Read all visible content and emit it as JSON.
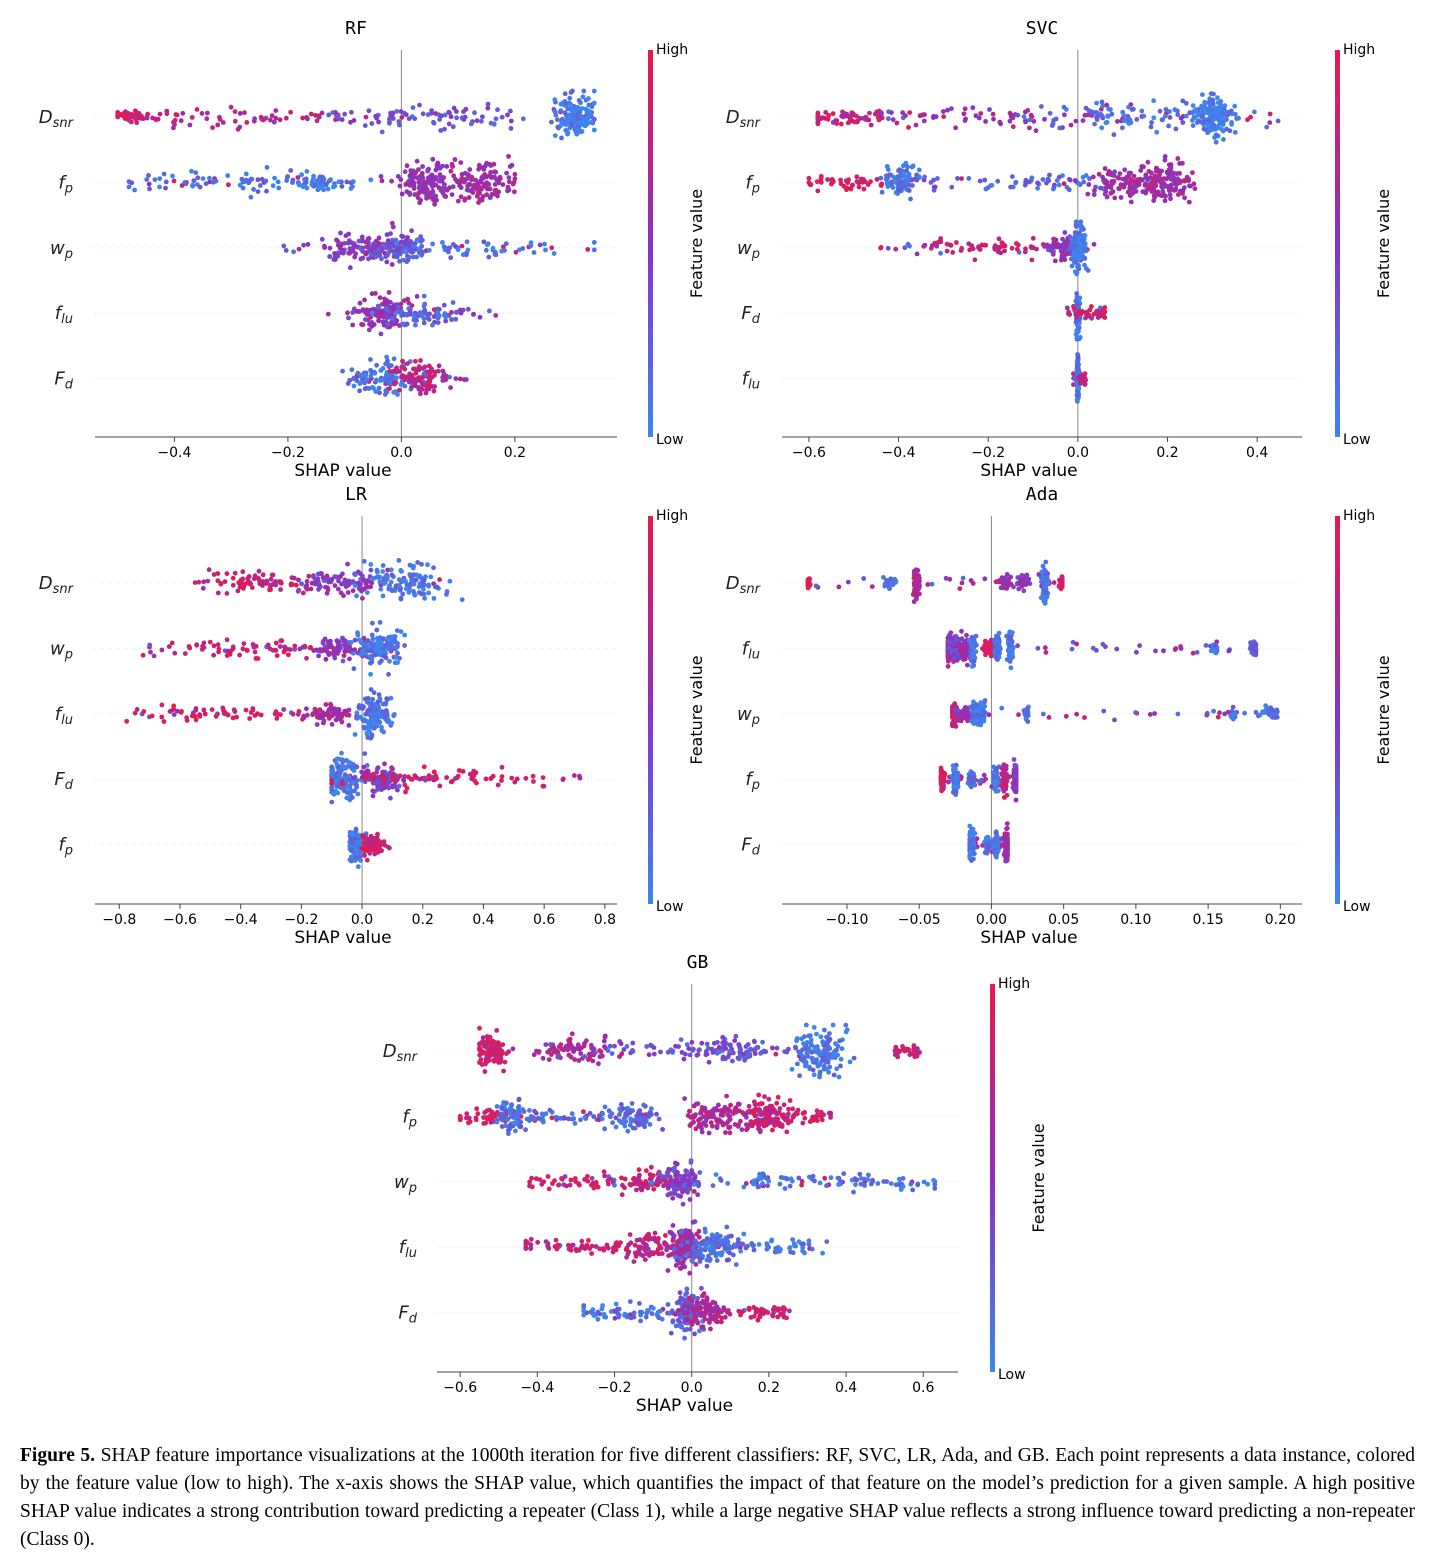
{
  "colors": {
    "low": "#3b87ee",
    "high": "#e8194c",
    "mid": "#8a32c0",
    "axis": "#444444",
    "grid": "#d8d8d8"
  },
  "chart_data": [
    {
      "type": "beeswarm",
      "title": "RF",
      "xlabel": "SHAP value",
      "xlim": [
        -0.54,
        0.38
      ],
      "xticks": [
        "-0.4",
        "-0.2",
        "0.0",
        "0.2"
      ],
      "xtick_values": [
        -0.4,
        -0.2,
        0.0,
        0.2
      ],
      "colorbar": {
        "label": "Feature value",
        "high": "High",
        "low": "Low"
      },
      "features": [
        {
          "name": "D",
          "sub": "snr",
          "min": -0.5,
          "max": 0.34,
          "clusters": [
            [
              -0.48,
              0.02,
              0.9,
              0.15
            ],
            [
              -0.3,
              0.12,
              0.7,
              0.35
            ],
            [
              0.05,
              0.12,
              0.3,
              0.55
            ],
            [
              0.31,
              0.02,
              0.05,
              1.0
            ]
          ]
        },
        {
          "name": "f",
          "sub": "p",
          "min": -0.48,
          "max": 0.2,
          "clusters": [
            [
              -0.3,
              0.1,
              0.15,
              0.35
            ],
            [
              -0.15,
              0.03,
              0.1,
              0.3
            ],
            [
              0.04,
              0.02,
              0.55,
              0.85
            ],
            [
              0.14,
              0.03,
              0.6,
              0.9
            ]
          ]
        },
        {
          "name": "w",
          "sub": "p",
          "min": -0.21,
          "max": 0.34,
          "clusters": [
            [
              -0.06,
              0.04,
              0.5,
              0.7
            ],
            [
              0.0,
              0.02,
              0.3,
              0.5
            ],
            [
              0.1,
              0.09,
              0.1,
              0.3
            ]
          ]
        },
        {
          "name": "f",
          "sub": "lu",
          "min": -0.13,
          "max": 0.19,
          "clusters": [
            [
              -0.03,
              0.025,
              0.55,
              0.75
            ],
            [
              0.04,
              0.04,
              0.2,
              0.45
            ]
          ]
        },
        {
          "name": "F",
          "sub": "d",
          "min": -0.11,
          "max": 0.12,
          "clusters": [
            [
              -0.03,
              0.03,
              0.1,
              0.7
            ],
            [
              0.03,
              0.025,
              0.75,
              0.6
            ]
          ]
        }
      ]
    },
    {
      "type": "beeswarm",
      "title": "SVC",
      "xlabel": "SHAP value",
      "xlim": [
        -0.66,
        0.5
      ],
      "xticks": [
        "-0.6",
        "-0.4",
        "-0.2",
        "0.0",
        "0.2",
        "0.4"
      ],
      "xtick_values": [
        -0.6,
        -0.4,
        -0.2,
        0.0,
        0.2,
        0.4
      ],
      "colorbar": {
        "label": "Feature value",
        "high": "High",
        "low": "Low"
      },
      "features": [
        {
          "name": "D",
          "sub": "snr",
          "min": -0.58,
          "max": 0.46,
          "clusters": [
            [
              -0.52,
              0.06,
              0.85,
              0.35
            ],
            [
              -0.2,
              0.15,
              0.6,
              0.4
            ],
            [
              0.15,
              0.12,
              0.15,
              0.6
            ],
            [
              0.3,
              0.02,
              0.05,
              1.0
            ]
          ]
        },
        {
          "name": "f",
          "sub": "p",
          "min": -0.6,
          "max": 0.28,
          "clusters": [
            [
              -0.52,
              0.05,
              0.95,
              0.2
            ],
            [
              -0.39,
              0.02,
              0.1,
              0.6
            ],
            [
              -0.1,
              0.12,
              0.2,
              0.3
            ],
            [
              0.1,
              0.05,
              0.6,
              0.6
            ],
            [
              0.2,
              0.03,
              0.6,
              0.9
            ]
          ]
        },
        {
          "name": "w",
          "sub": "p",
          "min": -0.44,
          "max": 0.05,
          "clusters": [
            [
              -0.2,
              0.1,
              0.85,
              0.3
            ],
            [
              -0.03,
              0.02,
              0.55,
              0.45
            ],
            [
              0.0,
              0.008,
              0.08,
              1.0
            ]
          ]
        },
        {
          "name": "F",
          "sub": "d",
          "min": -0.03,
          "max": 0.06,
          "clusters": [
            [
              0.0,
              0.002,
              0.1,
              0.9
            ],
            [
              0.03,
              0.02,
              0.9,
              0.1
            ]
          ]
        },
        {
          "name": "f",
          "sub": "lu",
          "min": -0.01,
          "max": 0.02,
          "clusters": [
            [
              0.0,
              0.001,
              0.1,
              0.95
            ],
            [
              0.01,
              0.004,
              0.8,
              0.1
            ]
          ]
        }
      ]
    },
    {
      "type": "beeswarm",
      "title": "LR",
      "xlabel": "SHAP value",
      "xlim": [
        -0.88,
        0.84
      ],
      "xticks": [
        "-0.8",
        "-0.6",
        "-0.4",
        "-0.2",
        "0.0",
        "0.2",
        "0.4",
        "0.6",
        "0.8"
      ],
      "xtick_values": [
        -0.8,
        -0.6,
        -0.4,
        -0.2,
        0.0,
        0.2,
        0.4,
        0.6,
        0.8
      ],
      "colorbar": {
        "label": "Feature value",
        "high": "High",
        "low": "Low"
      },
      "features": [
        {
          "name": "D",
          "sub": "snr",
          "min": -0.55,
          "max": 0.33,
          "clusters": [
            [
              -0.35,
              0.1,
              0.85,
              0.45
            ],
            [
              -0.05,
              0.08,
              0.5,
              0.55
            ],
            [
              0.15,
              0.08,
              0.1,
              0.8
            ]
          ]
        },
        {
          "name": "w",
          "sub": "p",
          "min": -0.73,
          "max": 0.14,
          "clusters": [
            [
              -0.4,
              0.15,
              0.85,
              0.3
            ],
            [
              -0.08,
              0.04,
              0.55,
              0.4
            ],
            [
              0.06,
              0.04,
              0.1,
              0.85
            ]
          ]
        },
        {
          "name": "f",
          "sub": "lu",
          "min": -0.8,
          "max": 0.11,
          "clusters": [
            [
              -0.45,
              0.15,
              0.9,
              0.3
            ],
            [
              -0.1,
              0.04,
              0.6,
              0.4
            ],
            [
              0.04,
              0.03,
              0.1,
              0.95
            ]
          ]
        },
        {
          "name": "F",
          "sub": "d",
          "min": -0.1,
          "max": 0.75,
          "clusters": [
            [
              -0.06,
              0.03,
              0.1,
              1.0
            ],
            [
              0.05,
              0.04,
              0.5,
              0.55
            ],
            [
              0.3,
              0.2,
              0.9,
              0.35
            ]
          ]
        },
        {
          "name": "f",
          "sub": "p",
          "min": -0.04,
          "max": 0.09,
          "clusters": [
            [
              -0.02,
              0.015,
              0.08,
              0.7
            ],
            [
              0.04,
              0.02,
              0.85,
              0.4
            ]
          ]
        }
      ]
    },
    {
      "type": "beeswarm",
      "title": "Ada",
      "xlabel": "SHAP value",
      "xlim": [
        -0.145,
        0.215
      ],
      "xticks": [
        "-0.10",
        "-0.05",
        "0.00",
        "0.05",
        "0.10",
        "0.15",
        "0.20"
      ],
      "xtick_values": [
        -0.1,
        -0.05,
        0.0,
        0.05,
        0.1,
        0.15,
        0.2
      ],
      "colorbar": {
        "label": "Feature value",
        "high": "High",
        "low": "Low"
      },
      "features": [
        {
          "name": "D",
          "sub": "snr",
          "min": -0.127,
          "max": 0.049,
          "clusters": [
            [
              -0.127,
              0.001,
              0.95,
              0.08
            ],
            [
              -0.07,
              0.002,
              0.1,
              0.12
            ],
            [
              -0.052,
              0.001,
              0.7,
              0.5
            ],
            [
              0.01,
              0.002,
              0.6,
              0.15
            ],
            [
              0.022,
              0.002,
              0.5,
              0.2
            ],
            [
              0.037,
              0.001,
              0.1,
              0.7
            ],
            [
              0.049,
              0.001,
              0.95,
              0.08
            ]
          ]
        },
        {
          "name": "f",
          "sub": "lu",
          "min": -0.03,
          "max": 0.183,
          "clusters": [
            [
              -0.03,
              0.002,
              0.7,
              0.6
            ],
            [
              -0.025,
              0.002,
              0.4,
              0.5
            ],
            [
              -0.017,
              0.002,
              0.6,
              0.45
            ],
            [
              -0.013,
              0.001,
              0.1,
              0.5
            ],
            [
              -0.002,
              0.002,
              0.9,
              0.2
            ],
            [
              0.004,
              0.001,
              0.1,
              0.5
            ],
            [
              0.013,
              0.001,
              0.1,
              0.55
            ],
            [
              0.155,
              0.001,
              0.1,
              0.05
            ],
            [
              0.182,
              0.001,
              0.2,
              0.25
            ]
          ]
        },
        {
          "name": "w",
          "sub": "p",
          "min": -0.027,
          "max": 0.198,
          "clusters": [
            [
              -0.026,
              0.001,
              0.8,
              0.4
            ],
            [
              -0.02,
              0.003,
              0.5,
              0.2
            ],
            [
              -0.012,
              0.001,
              0.1,
              0.35
            ],
            [
              -0.007,
              0.002,
              0.1,
              0.45
            ],
            [
              0.024,
              0.001,
              0.1,
              0.15
            ],
            [
              0.167,
              0.001,
              0.1,
              0.05
            ],
            [
              0.193,
              0.003,
              0.1,
              0.15
            ]
          ]
        },
        {
          "name": "f",
          "sub": "p",
          "min": -0.035,
          "max": 0.017,
          "clusters": [
            [
              -0.034,
              0.001,
              0.95,
              0.35
            ],
            [
              -0.025,
              0.001,
              0.1,
              0.45
            ],
            [
              -0.014,
              0.001,
              0.1,
              0.15
            ],
            [
              0.003,
              0.001,
              0.1,
              0.4
            ],
            [
              0.009,
              0.001,
              0.75,
              0.5
            ],
            [
              0.017,
              0.001,
              0.45,
              0.65
            ]
          ]
        },
        {
          "name": "F",
          "sub": "d",
          "min": -0.015,
          "max": 0.011,
          "clusters": [
            [
              -0.014,
              0.001,
              0.1,
              0.55
            ],
            [
              -0.003,
              0.001,
              0.1,
              0.25
            ],
            [
              0.003,
              0.001,
              0.1,
              0.45
            ],
            [
              0.011,
              0.001,
              0.6,
              0.75
            ]
          ]
        }
      ]
    },
    {
      "type": "beeswarm",
      "title": "GB",
      "xlabel": "SHAP value",
      "xlim": [
        -0.66,
        0.69
      ],
      "xticks": [
        "-0.6",
        "-0.4",
        "-0.2",
        "0.0",
        "0.2",
        "0.4",
        "0.6"
      ],
      "xtick_values": [
        -0.6,
        -0.4,
        -0.2,
        0.0,
        0.2,
        0.4,
        0.6
      ],
      "colorbar": {
        "label": "Feature value",
        "high": "High",
        "low": "Low"
      },
      "features": [
        {
          "name": "D",
          "sub": "snr",
          "min": -0.55,
          "max": 0.59,
          "clusters": [
            [
              -0.52,
              0.02,
              0.85,
              0.7
            ],
            [
              -0.3,
              0.05,
              0.7,
              0.5
            ],
            [
              -0.05,
              0.15,
              0.3,
              0.3
            ],
            [
              0.12,
              0.06,
              0.3,
              0.4
            ],
            [
              0.34,
              0.03,
              0.1,
              1.0
            ],
            [
              0.56,
              0.02,
              0.9,
              0.1
            ]
          ]
        },
        {
          "name": "f",
          "sub": "p",
          "min": -0.6,
          "max": 0.36,
          "clusters": [
            [
              -0.52,
              0.05,
              0.95,
              0.2
            ],
            [
              -0.47,
              0.02,
              0.15,
              0.55
            ],
            [
              -0.27,
              0.1,
              0.2,
              0.25
            ],
            [
              -0.15,
              0.03,
              0.2,
              0.5
            ],
            [
              0.06,
              0.04,
              0.7,
              0.65
            ],
            [
              0.19,
              0.03,
              0.8,
              0.75
            ],
            [
              0.3,
              0.04,
              0.9,
              0.15
            ]
          ]
        },
        {
          "name": "w",
          "sub": "p",
          "min": -0.42,
          "max": 0.63,
          "clusters": [
            [
              -0.3,
              0.08,
              0.9,
              0.2
            ],
            [
              -0.1,
              0.05,
              0.8,
              0.5
            ],
            [
              -0.03,
              0.02,
              0.4,
              0.8
            ],
            [
              0.2,
              0.15,
              0.1,
              0.3
            ],
            [
              0.52,
              0.08,
              0.1,
              0.15
            ]
          ]
        },
        {
          "name": "f",
          "sub": "lu",
          "min": -0.43,
          "max": 0.35,
          "clusters": [
            [
              -0.3,
              0.08,
              0.85,
              0.25
            ],
            [
              -0.1,
              0.05,
              0.75,
              0.55
            ],
            [
              -0.02,
              0.02,
              0.6,
              0.9
            ],
            [
              0.05,
              0.04,
              0.15,
              0.7
            ],
            [
              0.2,
              0.09,
              0.1,
              0.25
            ]
          ]
        },
        {
          "name": "F",
          "sub": "d",
          "min": -0.28,
          "max": 0.26,
          "clusters": [
            [
              -0.14,
              0.08,
              0.1,
              0.3
            ],
            [
              -0.01,
              0.02,
              0.2,
              0.9
            ],
            [
              0.03,
              0.03,
              0.7,
              0.65
            ],
            [
              0.2,
              0.04,
              0.9,
              0.15
            ]
          ]
        }
      ]
    }
  ],
  "caption": {
    "label": "Figure 5.",
    "text": "SHAP feature importance visualizations at the 1000th iteration for five different classifiers: RF, SVC, LR, Ada, and GB. Each point represents a data instance, colored by the feature value (low to high). The x-axis shows the SHAP value, which quantifies the impact of that feature on the model’s prediction for a given sample. A high positive SHAP value indicates a strong contribution toward predicting a repeater (Class 1), while a large negative SHAP value reflects a strong influence toward predicting a non-repeater (Class 0)."
  }
}
